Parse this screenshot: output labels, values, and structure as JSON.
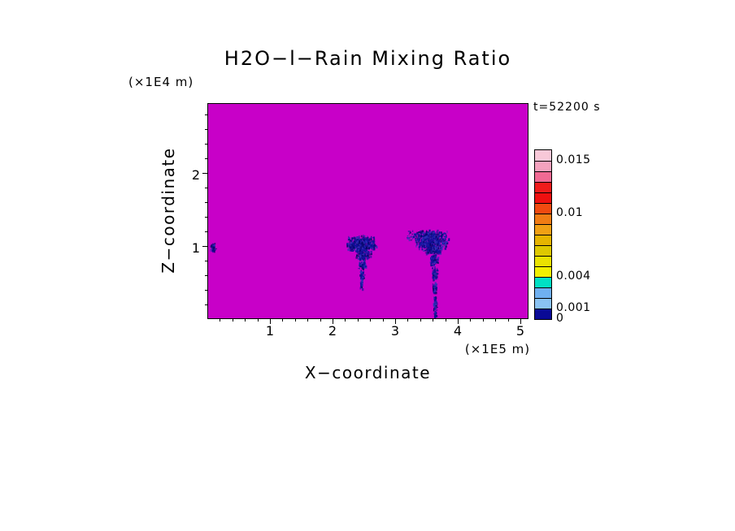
{
  "title": "H2O−l−Rain Mixing Ratio",
  "timestamp": "t=52200 s",
  "axes": {
    "x": {
      "label": "X−coordinate",
      "unit": "(×1E5 m)",
      "ticks": [
        "1",
        "2",
        "3",
        "4",
        "5"
      ],
      "minor_step": 0.2,
      "max": 5.13
    },
    "z": {
      "label": "Z−coordinate",
      "unit": "(×1E4 m)",
      "ticks": [
        "1",
        "2"
      ],
      "minor_step": 0.2,
      "max": 2.95
    }
  },
  "colorbar": {
    "segment_colors_top_to_bottom": [
      "#F8C8D8",
      "#F4A2BE",
      "#F06A94",
      "#F01C1C",
      "#EE1010",
      "#F04A10",
      "#F07C14",
      "#F0A014",
      "#E6B400",
      "#DEC800",
      "#EAE200",
      "#F0F000",
      "#00E0C4",
      "#6FB0F0",
      "#8AC2F2",
      "#0A0A96"
    ],
    "labels": [
      {
        "text": "0.015",
        "level": 0.015
      },
      {
        "text": "0.01",
        "level": 0.01
      },
      {
        "text": "0.004",
        "level": 0.004
      },
      {
        "text": "0.001",
        "level": 0.001
      },
      {
        "text": "0",
        "level": 0
      }
    ]
  },
  "chart_data": {
    "type": "heatmap",
    "title": "H2O−l−Rain Mixing Ratio",
    "time_label": "t=52200 s",
    "xlabel": "X−coordinate",
    "x_unit": "×1E5 m",
    "x_range": [
      0,
      5.13
    ],
    "zlabel": "Z−coordinate",
    "z_unit": "×1E4 m",
    "z_range": [
      0,
      2.95
    ],
    "contour_levels": [
      0,
      0.001,
      0.004,
      0.01,
      0.015
    ],
    "background_field_value": 0,
    "background_color": "#C800C8",
    "speckle_colors": [
      "#10109B",
      "#10109B",
      "#070768",
      "#2F2FB8"
    ],
    "cluster_format": "[x_center, z_center, x_halfwidth, z_halfwidth, point_count] in axis units",
    "features": [
      {
        "name": "rain-speck-left-edge",
        "approx_value": 0.001,
        "clusters": [
          [
            0.07,
            0.98,
            0.05,
            0.07,
            30
          ]
        ]
      },
      {
        "name": "rain-cell-near-x2.4",
        "approx_value": 0.001,
        "clusters": [
          [
            2.44,
            1.06,
            0.26,
            0.09,
            260
          ],
          [
            2.45,
            0.96,
            0.2,
            0.07,
            170
          ],
          [
            2.47,
            0.86,
            0.13,
            0.06,
            110
          ],
          [
            2.46,
            0.74,
            0.08,
            0.06,
            70
          ],
          [
            2.45,
            0.6,
            0.04,
            0.08,
            45
          ],
          [
            2.44,
            0.46,
            0.02,
            0.08,
            28
          ],
          [
            2.6,
            1.0,
            0.1,
            0.06,
            60
          ],
          [
            2.3,
            1.0,
            0.1,
            0.06,
            60
          ]
        ]
      },
      {
        "name": "rain-cell-near-x3.6",
        "approx_value": 0.001,
        "clusters": [
          [
            3.52,
            1.13,
            0.36,
            0.1,
            330
          ],
          [
            3.55,
            1.02,
            0.28,
            0.08,
            230
          ],
          [
            3.58,
            0.93,
            0.16,
            0.06,
            130
          ],
          [
            3.6,
            0.8,
            0.07,
            0.08,
            80
          ],
          [
            3.61,
            0.62,
            0.05,
            0.1,
            70
          ],
          [
            3.61,
            0.42,
            0.04,
            0.1,
            60
          ],
          [
            3.62,
            0.22,
            0.035,
            0.1,
            55
          ],
          [
            3.62,
            0.06,
            0.03,
            0.06,
            35
          ]
        ]
      }
    ]
  }
}
